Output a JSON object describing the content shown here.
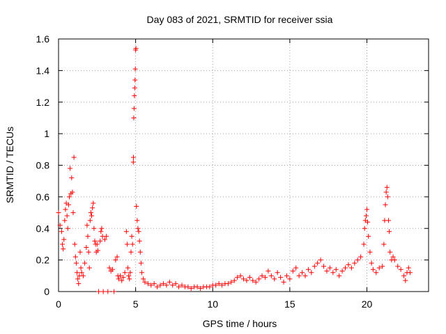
{
  "chart_data": {
    "type": "scatter",
    "title": "Day 083 of 2021, SRMTID for receiver ssia",
    "xlabel": "GPS time / hours",
    "ylabel": "SRMTID / TECUs",
    "xlim": [
      0,
      24
    ],
    "ylim": [
      0,
      1.6
    ],
    "xticks": [
      0,
      5,
      10,
      15,
      20
    ],
    "xtick_labels": [
      "0",
      "5",
      "10",
      "15",
      "20"
    ],
    "yticks": [
      0,
      0.2,
      0.4,
      0.6,
      0.8,
      1.0,
      1.2,
      1.4,
      1.6
    ],
    "ytick_labels": [
      "0",
      "0.2",
      "0.4",
      "0.6",
      "0.8",
      "1",
      "1.2",
      "1.4",
      "1.6"
    ],
    "grid": true,
    "marker": "plus",
    "color": "#ff0000",
    "series": [
      {
        "name": "SRMTID",
        "points": [
          [
            0.0,
            0.5
          ],
          [
            0.1,
            0.42
          ],
          [
            0.2,
            0.38
          ],
          [
            0.25,
            0.3
          ],
          [
            0.3,
            0.27
          ],
          [
            0.35,
            0.33
          ],
          [
            0.4,
            0.45
          ],
          [
            0.45,
            0.52
          ],
          [
            0.5,
            0.56
          ],
          [
            0.55,
            0.48
          ],
          [
            0.6,
            0.4
          ],
          [
            0.65,
            0.55
          ],
          [
            0.7,
            0.6
          ],
          [
            0.75,
            0.78
          ],
          [
            0.8,
            0.62
          ],
          [
            0.85,
            0.72
          ],
          [
            0.9,
            0.63
          ],
          [
            0.95,
            0.5
          ],
          [
            1.0,
            0.85
          ],
          [
            1.05,
            0.3
          ],
          [
            1.1,
            0.22
          ],
          [
            1.15,
            0.18
          ],
          [
            1.2,
            0.12
          ],
          [
            1.25,
            0.08
          ],
          [
            1.3,
            0.05
          ],
          [
            1.35,
            0.1
          ],
          [
            1.4,
            0.25
          ],
          [
            1.45,
            0.15
          ],
          [
            1.5,
            0.12
          ],
          [
            1.6,
            0.1
          ],
          [
            1.7,
            0.18
          ],
          [
            1.8,
            0.28
          ],
          [
            1.85,
            0.42
          ],
          [
            1.9,
            0.35
          ],
          [
            1.95,
            0.25
          ],
          [
            2.0,
            0.15
          ],
          [
            2.05,
            0.45
          ],
          [
            2.1,
            0.5
          ],
          [
            2.15,
            0.48
          ],
          [
            2.2,
            0.53
          ],
          [
            2.25,
            0.56
          ],
          [
            2.3,
            0.4
          ],
          [
            2.35,
            0.32
          ],
          [
            2.4,
            0.3
          ],
          [
            2.45,
            0.25
          ],
          [
            2.5,
            0.3
          ],
          [
            2.55,
            0.26
          ],
          [
            2.6,
            0.0
          ],
          [
            2.7,
            0.32
          ],
          [
            2.75,
            0.38
          ],
          [
            2.8,
            0.4
          ],
          [
            2.85,
            0.35
          ],
          [
            2.9,
            0.0
          ],
          [
            3.0,
            0.33
          ],
          [
            3.1,
            0.35
          ],
          [
            3.2,
            0.0
          ],
          [
            3.3,
            0.15
          ],
          [
            3.4,
            0.13
          ],
          [
            3.5,
            0.14
          ],
          [
            3.6,
            0.0
          ],
          [
            3.7,
            0.2
          ],
          [
            3.8,
            0.22
          ],
          [
            3.85,
            0.1
          ],
          [
            3.9,
            0.08
          ],
          [
            4.0,
            0.1
          ],
          [
            4.1,
            0.07
          ],
          [
            4.2,
            0.09
          ],
          [
            4.3,
            0.12
          ],
          [
            4.4,
            0.38
          ],
          [
            4.45,
            0.3
          ],
          [
            4.5,
            0.15
          ],
          [
            4.55,
            0.1
          ],
          [
            4.6,
            0.08
          ],
          [
            4.65,
            0.12
          ],
          [
            4.7,
            0.25
          ],
          [
            4.75,
            0.35
          ],
          [
            4.8,
            0.3
          ],
          [
            4.85,
            0.82
          ],
          [
            4.86,
            0.85
          ],
          [
            4.88,
            1.1
          ],
          [
            4.9,
            1.16
          ],
          [
            4.92,
            1.24
          ],
          [
            4.94,
            1.29
          ],
          [
            4.96,
            1.34
          ],
          [
            4.98,
            1.41
          ],
          [
            5.0,
            1.53
          ],
          [
            5.02,
            1.54
          ],
          [
            5.05,
            0.54
          ],
          [
            5.1,
            0.45
          ],
          [
            5.15,
            0.4
          ],
          [
            5.2,
            0.38
          ],
          [
            5.25,
            0.32
          ],
          [
            5.3,
            0.25
          ],
          [
            5.35,
            0.18
          ],
          [
            5.4,
            0.12
          ],
          [
            5.5,
            0.08
          ],
          [
            5.6,
            0.06
          ],
          [
            5.8,
            0.05
          ],
          [
            6.0,
            0.04
          ],
          [
            6.2,
            0.05
          ],
          [
            6.4,
            0.03
          ],
          [
            6.6,
            0.04
          ],
          [
            6.8,
            0.05
          ],
          [
            7.0,
            0.04
          ],
          [
            7.2,
            0.06
          ],
          [
            7.4,
            0.04
          ],
          [
            7.6,
            0.05
          ],
          [
            7.8,
            0.03
          ],
          [
            8.0,
            0.04
          ],
          [
            8.2,
            0.03
          ],
          [
            8.4,
            0.03
          ],
          [
            8.6,
            0.02
          ],
          [
            8.8,
            0.03
          ],
          [
            9.0,
            0.03
          ],
          [
            9.2,
            0.02
          ],
          [
            9.4,
            0.03
          ],
          [
            9.6,
            0.03
          ],
          [
            9.8,
            0.03
          ],
          [
            10.0,
            0.04
          ],
          [
            10.2,
            0.04
          ],
          [
            10.4,
            0.05
          ],
          [
            10.6,
            0.04
          ],
          [
            10.8,
            0.05
          ],
          [
            11.0,
            0.05
          ],
          [
            11.2,
            0.06
          ],
          [
            11.4,
            0.07
          ],
          [
            11.6,
            0.09
          ],
          [
            11.8,
            0.1
          ],
          [
            12.0,
            0.08
          ],
          [
            12.2,
            0.07
          ],
          [
            12.4,
            0.09
          ],
          [
            12.6,
            0.07
          ],
          [
            12.8,
            0.06
          ],
          [
            13.0,
            0.08
          ],
          [
            13.2,
            0.1
          ],
          [
            13.4,
            0.09
          ],
          [
            13.6,
            0.13
          ],
          [
            13.8,
            0.1
          ],
          [
            14.0,
            0.08
          ],
          [
            14.2,
            0.12
          ],
          [
            14.4,
            0.09
          ],
          [
            14.6,
            0.06
          ],
          [
            14.8,
            0.1
          ],
          [
            15.0,
            0.08
          ],
          [
            15.2,
            0.13
          ],
          [
            15.4,
            0.15
          ],
          [
            15.6,
            0.1
          ],
          [
            15.8,
            0.12
          ],
          [
            16.0,
            0.1
          ],
          [
            16.2,
            0.14
          ],
          [
            16.4,
            0.12
          ],
          [
            16.6,
            0.16
          ],
          [
            16.8,
            0.18
          ],
          [
            17.0,
            0.2
          ],
          [
            17.2,
            0.16
          ],
          [
            17.4,
            0.13
          ],
          [
            17.6,
            0.15
          ],
          [
            17.8,
            0.12
          ],
          [
            18.0,
            0.14
          ],
          [
            18.2,
            0.1
          ],
          [
            18.4,
            0.13
          ],
          [
            18.6,
            0.15
          ],
          [
            18.8,
            0.17
          ],
          [
            19.0,
            0.15
          ],
          [
            19.2,
            0.18
          ],
          [
            19.4,
            0.2
          ],
          [
            19.6,
            0.22
          ],
          [
            19.8,
            0.3
          ],
          [
            19.85,
            0.4
          ],
          [
            19.9,
            0.45
          ],
          [
            19.95,
            0.48
          ],
          [
            20.0,
            0.52
          ],
          [
            20.05,
            0.44
          ],
          [
            20.1,
            0.35
          ],
          [
            20.2,
            0.25
          ],
          [
            20.3,
            0.18
          ],
          [
            20.4,
            0.14
          ],
          [
            20.6,
            0.12
          ],
          [
            20.8,
            0.15
          ],
          [
            21.0,
            0.16
          ],
          [
            21.1,
            0.3
          ],
          [
            21.15,
            0.45
          ],
          [
            21.2,
            0.55
          ],
          [
            21.25,
            0.63
          ],
          [
            21.3,
            0.66
          ],
          [
            21.35,
            0.6
          ],
          [
            21.4,
            0.45
          ],
          [
            21.45,
            0.38
          ],
          [
            21.5,
            0.25
          ],
          [
            21.6,
            0.2
          ],
          [
            21.7,
            0.22
          ],
          [
            21.8,
            0.2
          ],
          [
            22.0,
            0.16
          ],
          [
            22.2,
            0.14
          ],
          [
            22.4,
            0.1
          ],
          [
            22.5,
            0.07
          ],
          [
            22.6,
            0.12
          ],
          [
            22.7,
            0.15
          ],
          [
            22.8,
            0.12
          ]
        ]
      }
    ]
  }
}
